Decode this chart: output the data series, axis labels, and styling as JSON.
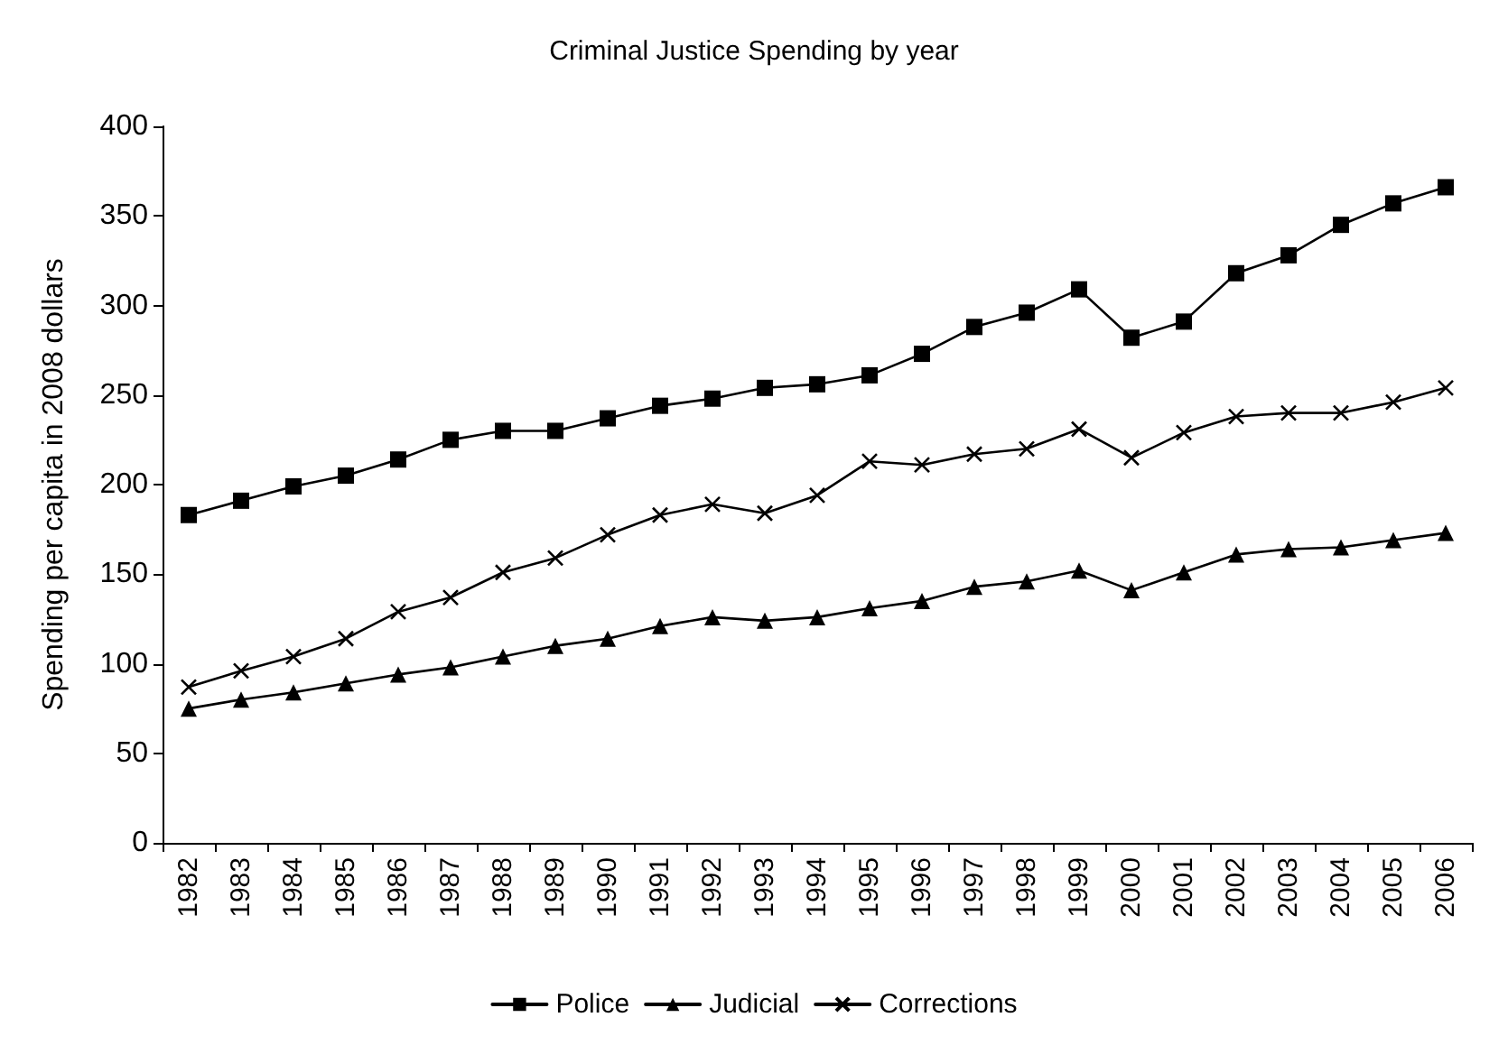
{
  "chart_data": {
    "type": "line",
    "title": "Criminal Justice Spending by year",
    "ylabel": "Spending per capita in 2008 dollars",
    "categories": [
      "1982",
      "1983",
      "1984",
      "1985",
      "1986",
      "1987",
      "1988",
      "1989",
      "1990",
      "1991",
      "1992",
      "1993",
      "1994",
      "1995",
      "1996",
      "1997",
      "1998",
      "1999",
      "2000",
      "2001",
      "2002",
      "2003",
      "2004",
      "2005",
      "2006"
    ],
    "series": [
      {
        "name": "Police",
        "color": "#000000",
        "marker": "square",
        "values": [
          183,
          191,
          199,
          205,
          214,
          225,
          230,
          230,
          237,
          244,
          248,
          254,
          256,
          261,
          273,
          288,
          296,
          309,
          282,
          291,
          318,
          328,
          345,
          357,
          366
        ]
      },
      {
        "name": "Judicial",
        "color": "#000000",
        "marker": "triangle",
        "values": [
          75,
          80,
          84,
          89,
          94,
          98,
          104,
          110,
          114,
          121,
          126,
          124,
          126,
          131,
          135,
          143,
          146,
          152,
          141,
          151,
          161,
          164,
          165,
          169,
          173
        ]
      },
      {
        "name": "Corrections",
        "color": "#000000",
        "marker": "cross",
        "values": [
          87,
          96,
          104,
          114,
          129,
          137,
          151,
          159,
          172,
          183,
          189,
          184,
          194,
          213,
          211,
          217,
          220,
          231,
          215,
          229,
          238,
          240,
          240,
          246,
          254
        ]
      }
    ],
    "ylim": [
      0,
      400
    ],
    "yticks": [
      0,
      50,
      100,
      150,
      200,
      250,
      300,
      350,
      400
    ],
    "grid": false,
    "legend": "bottom",
    "line_style": "solid"
  }
}
